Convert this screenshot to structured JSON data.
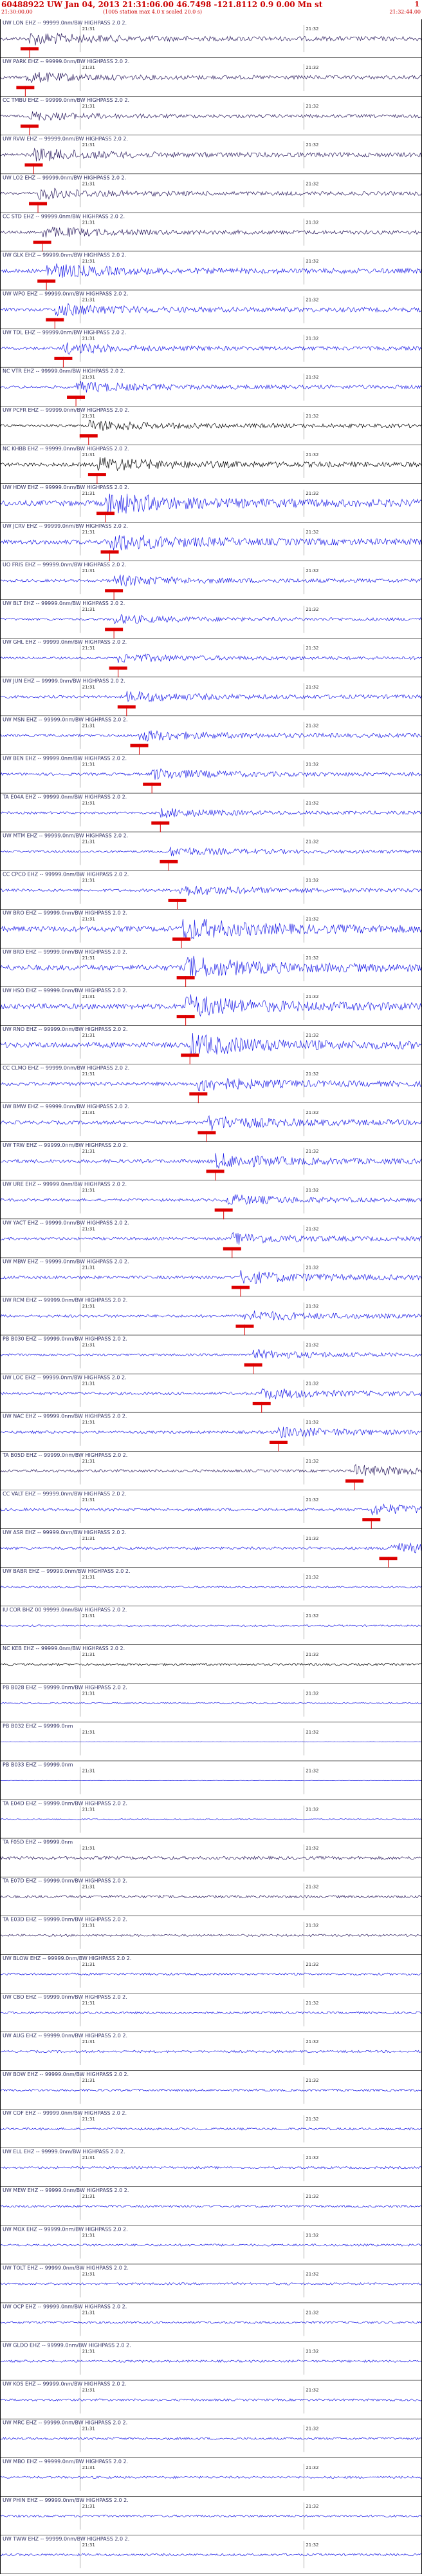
{
  "header": {
    "title": "60488922 UW Jan 04, 2013 21:31:06.00   46.7498 -121.8112  0.9 0.00 Mn st",
    "start_time": "21:30:00.00",
    "scale_note": "(1005 station max 4.0 x scaled 20.0 s)",
    "end_time": "21:32:44.00",
    "page_number": "1"
  },
  "colors": {
    "blue_trace": "#1a1ae6",
    "black_trace": "#000000",
    "purple_trace": "#2a1a5e",
    "pick_marker": "#dd0000",
    "divider": "#000000",
    "tick": "#555555"
  },
  "time_labels": [
    "21:31",
    "21:32"
  ],
  "traces": [
    {
      "label": "UW LON EHZ -- 99999.0nm/BW  HIGHPASS  2.0  2.",
      "color": "purple",
      "amp": 7,
      "pick": 0.07
    },
    {
      "label": "UW PARK EHZ -- 99999.0nm/BW  HIGHPASS  2.0  2.",
      "color": "purple",
      "amp": 6,
      "pick": 0.06
    },
    {
      "label": "CC TMBU EHZ -- 99999.0nm/BW  HIGHPASS  2.0  2.",
      "color": "purple",
      "amp": 5,
      "pick": 0.07
    },
    {
      "label": "UW RVW EHZ -- 99999.0nm/BW  HIGHPASS  2.0  2.",
      "color": "purple",
      "amp": 7,
      "pick": 0.08
    },
    {
      "label": "UW LO2 EHZ -- 99999.0nm/BW  HIGHPASS  2.0  2.",
      "color": "purple",
      "amp": 6,
      "pick": 0.09
    },
    {
      "label": "CC STD EHZ -- 99999.0nm/BW  HIGHPASS  2.0  2.",
      "color": "purple",
      "amp": 6,
      "pick": 0.1
    },
    {
      "label": "UW GLK EHZ -- 99999.0nm/BW  HIGHPASS  2.0  2.",
      "color": "blue",
      "amp": 8,
      "pick": 0.11
    },
    {
      "label": "UW WPO EHZ -- 99999.0nm/BW  HIGHPASS  2.0  2.",
      "color": "blue",
      "amp": 7,
      "pick": 0.13
    },
    {
      "label": "UW TDL EHZ -- 99999.0nm/BW  HIGHPASS  2.0  2.",
      "color": "blue",
      "amp": 6,
      "pick": 0.15
    },
    {
      "label": "NC VTR EHZ -- 99999.0nm/BW  HIGHPASS  2.0  2.",
      "color": "blue",
      "amp": 6,
      "pick": 0.18
    },
    {
      "label": "UW PCFR EHZ -- 99999.0nm/BW  HIGHPASS  2.0  2.",
      "color": "black",
      "amp": 6,
      "pick": 0.21
    },
    {
      "label": "NC KHBB EHZ -- 99999.0nm/BW  HIGHPASS  2.0  2.",
      "color": "black",
      "amp": 8,
      "pick": 0.23
    },
    {
      "label": "UW HDW EHZ -- 99999.0nm/BW  HIGHPASS  2.0  2.",
      "color": "blue",
      "amp": 12,
      "pick": 0.25
    },
    {
      "label": "UW JCRV EHZ -- 99999.0nm/BW  HIGHPASS  2.0  2.",
      "color": "blue",
      "amp": 10,
      "pick": 0.26
    },
    {
      "label": "UO FRIS EHZ -- 99999.0nm/BW  HIGHPASS  2.0  2.",
      "color": "blue",
      "amp": 6,
      "pick": 0.27
    },
    {
      "label": "UW BLT EHZ -- 99999.0nm/BW  HIGHPASS  2.0  2.",
      "color": "blue",
      "amp": 5,
      "pick": 0.27
    },
    {
      "label": "UW GHL EHZ -- 99999.0nm/BW  HIGHPASS  2.0  2.",
      "color": "blue",
      "amp": 5,
      "pick": 0.28
    },
    {
      "label": "UW JUN EHZ -- 99999.0nm/BW  HIGHPASS  2.0  2.",
      "color": "blue",
      "amp": 6,
      "pick": 0.3
    },
    {
      "label": "UW MSN EHZ -- 99999.0nm/BW  HIGHPASS  2.0  2.",
      "color": "blue",
      "amp": 6,
      "pick": 0.33
    },
    {
      "label": "UW BEN EHZ -- 99999.0nm/BW  HIGHPASS  2.0  2.",
      "color": "blue",
      "amp": 6,
      "pick": 0.36
    },
    {
      "label": "TA E04A EHZ -- 99999.0nm/BW  HIGHPASS  2.0  2.",
      "color": "blue",
      "amp": 5,
      "pick": 0.38
    },
    {
      "label": "UW MTM EHZ -- 99999.0nm/BW  HIGHPASS  2.0  2.",
      "color": "blue",
      "amp": 5,
      "pick": 0.4
    },
    {
      "label": "CC CPCO EHZ -- 99999.0nm/BW  HIGHPASS  2.0  2.",
      "color": "blue",
      "amp": 6,
      "pick": 0.42
    },
    {
      "label": "UW BRO EHZ -- 99999.0nm/BW  HIGHPASS  2.0  2.",
      "color": "blue",
      "amp": 12,
      "pick": 0.43
    },
    {
      "label": "UW BRD EHZ -- 99999.0nm/BW  HIGHPASS  2.0  2.",
      "color": "blue",
      "amp": 12,
      "pick": 0.44
    },
    {
      "label": "UW HSO EHZ -- 99999.0nm/BW  HIGHPASS  2.0  2.",
      "color": "blue",
      "amp": 12,
      "pick": 0.44
    },
    {
      "label": "UW RNO EHZ -- 99999.0nm/BW  HIGHPASS  2.0  2.",
      "color": "blue",
      "amp": 12,
      "pick": 0.45
    },
    {
      "label": "CC CLMO EHZ -- 99999.0nm/BW  HIGHPASS  2.0  2.",
      "color": "blue",
      "amp": 8,
      "pick": 0.47
    },
    {
      "label": "UW BMW EHZ -- 99999.0nm/BW  HIGHPASS  2.0  2.",
      "color": "blue",
      "amp": 8,
      "pick": 0.49
    },
    {
      "label": "UW TRW EHZ -- 99999.0nm/BW  HIGHPASS  2.0  2.",
      "color": "blue",
      "amp": 8,
      "pick": 0.51
    },
    {
      "label": "UW URE EHZ -- 99999.0nm/BW  HIGHPASS  2.0  2.",
      "color": "blue",
      "amp": 6,
      "pick": 0.53
    },
    {
      "label": "UW YACT EHZ -- 99999.0nm/BW  HIGHPASS  2.0  2.",
      "color": "blue",
      "amp": 6,
      "pick": 0.55
    },
    {
      "label": "UW MBW EHZ -- 99999.0nm/BW  HIGHPASS  2.0  2.",
      "color": "blue",
      "amp": 7,
      "pick": 0.57
    },
    {
      "label": "UW RCM EHZ -- 99999.0nm/BW  HIGHPASS  2.0  2.",
      "color": "blue",
      "amp": 6,
      "pick": 0.58
    },
    {
      "label": "PB B030 EHZ -- 99999.0nm/BW  HIGHPASS  2.0  2.",
      "color": "blue",
      "amp": 5,
      "pick": 0.6
    },
    {
      "label": "UW LOC EHZ -- 99999.0nm/BW  HIGHPASS  2.0  2.",
      "color": "blue",
      "amp": 6,
      "pick": 0.62
    },
    {
      "label": "UW NAC EHZ -- 99999.0nm/BW  HIGHPASS  2.0  2.",
      "color": "blue",
      "amp": 6,
      "pick": 0.66
    },
    {
      "label": "TA B05D EHZ -- 99999.0nm/BW  HIGHPASS  2.0  2.",
      "color": "purple",
      "amp": 6,
      "pick": 0.84
    },
    {
      "label": "CC VALT EHZ -- 99999.0nm/BW  HIGHPASS  2.0  2.",
      "color": "blue",
      "amp": 6,
      "pick": 0.88
    },
    {
      "label": "UW ASR EHZ -- 99999.0nm/BW  HIGHPASS  2.0  2.",
      "color": "blue",
      "amp": 6,
      "pick": 0.92
    },
    {
      "label": "UW BABR EHZ -- 99999.0nm/BW  HIGHPASS  2.0  2.",
      "color": "blue",
      "amp": 4,
      "pick": null
    },
    {
      "label": "IU COR BHZ 00 99999.0nm/BW  HIGHPASS  2.0  2.",
      "color": "blue",
      "amp": 4,
      "pick": null
    },
    {
      "label": "NC KEB EHZ -- 99999.0nm/BW  HIGHPASS  2.0  2.",
      "color": "black",
      "amp": 5,
      "pick": null
    },
    {
      "label": "PB B028 EHZ -- 99999.0nm/BW  HIGHPASS  2.0  2.",
      "color": "blue",
      "amp": 3,
      "pick": null
    },
    {
      "label": "PB B032 EHZ -- 99999.0nm",
      "color": "blue",
      "amp": 1,
      "pick": null
    },
    {
      "label": "PB B033 EHZ -- 99999.0nm",
      "color": "blue",
      "amp": 1,
      "pick": null
    },
    {
      "label": "TA E04D EHZ -- 99999.0nm/BW  HIGHPASS  2.0  2.",
      "color": "blue",
      "amp": 3,
      "pick": null
    },
    {
      "label": "TA F05D EHZ -- 99999.0nm",
      "color": "purple",
      "amp": 7,
      "pick": null
    },
    {
      "label": "TA E07D EHZ -- 99999.0nm/BW  HIGHPASS  2.0  2.",
      "color": "purple",
      "amp": 6,
      "pick": null
    },
    {
      "label": "TA E03D EHZ -- 99999.0nm/BW  HIGHPASS  2.0  2.",
      "color": "purple",
      "amp": 5,
      "pick": null
    },
    {
      "label": "UW BLOW EHZ -- 99999.0nm/BW  HIGHPASS  2.0  2.",
      "color": "blue",
      "amp": 5,
      "pick": null
    },
    {
      "label": "UW CBO EHZ -- 99999.0nm/BW  HIGHPASS  2.0  2.",
      "color": "blue",
      "amp": 5,
      "pick": null
    },
    {
      "label": "UW AUG EHZ -- 99999.0nm/BW  HIGHPASS  2.0  2.",
      "color": "blue",
      "amp": 5,
      "pick": null
    },
    {
      "label": "UW BOW EHZ -- 99999.0nm/BW  HIGHPASS  2.0  2.",
      "color": "blue",
      "amp": 5,
      "pick": null
    },
    {
      "label": "UW COF EHZ -- 99999.0nm/BW  HIGHPASS  2.0  2.",
      "color": "blue",
      "amp": 5,
      "pick": null
    },
    {
      "label": "UW ELL EHZ -- 99999.0nm/BW  HIGHPASS  2.0  2.",
      "color": "blue",
      "amp": 5,
      "pick": null
    },
    {
      "label": "UW MEW EHZ -- 99999.0nm/BW  HIGHPASS  2.0  2.",
      "color": "blue",
      "amp": 5,
      "pick": null
    },
    {
      "label": "UW MOX EHZ -- 99999.0nm/BW  HIGHPASS  2.0  2.",
      "color": "blue",
      "amp": 5,
      "pick": null
    },
    {
      "label": "UW TOLT EHZ -- 99999.0nm/BW  HIGHPASS  2.0  2.",
      "color": "blue",
      "amp": 5,
      "pick": null
    },
    {
      "label": "UW OCP EHZ -- 99999.0nm/BW  HIGHPASS  2.0  2.",
      "color": "blue",
      "amp": 5,
      "pick": null
    },
    {
      "label": "UW GLDO EHZ -- 99999.0nm/BW  HIGHPASS  2.0  2.",
      "color": "blue",
      "amp": 5,
      "pick": null
    },
    {
      "label": "UW KOS EHZ -- 99999.0nm/BW  HIGHPASS  2.0  2.",
      "color": "blue",
      "amp": 5,
      "pick": null
    },
    {
      "label": "UW MRC EHZ -- 99999.0nm/BW  HIGHPASS  2.0  2.",
      "color": "blue",
      "amp": 5,
      "pick": null
    },
    {
      "label": "UW MBO EHZ -- 99999.0nm/BW  HIGHPASS  2.0  2.",
      "color": "blue",
      "amp": 5,
      "pick": null
    },
    {
      "label": "UW PHIN EHZ -- 99999.0nm/BW  HIGHPASS  2.0  2.",
      "color": "blue",
      "amp": 5,
      "pick": null
    },
    {
      "label": "UW TWW EHZ -- 99999.0nm/BW  HIGHPASS  2.0  2.",
      "color": "blue",
      "amp": 5,
      "pick": null
    }
  ]
}
